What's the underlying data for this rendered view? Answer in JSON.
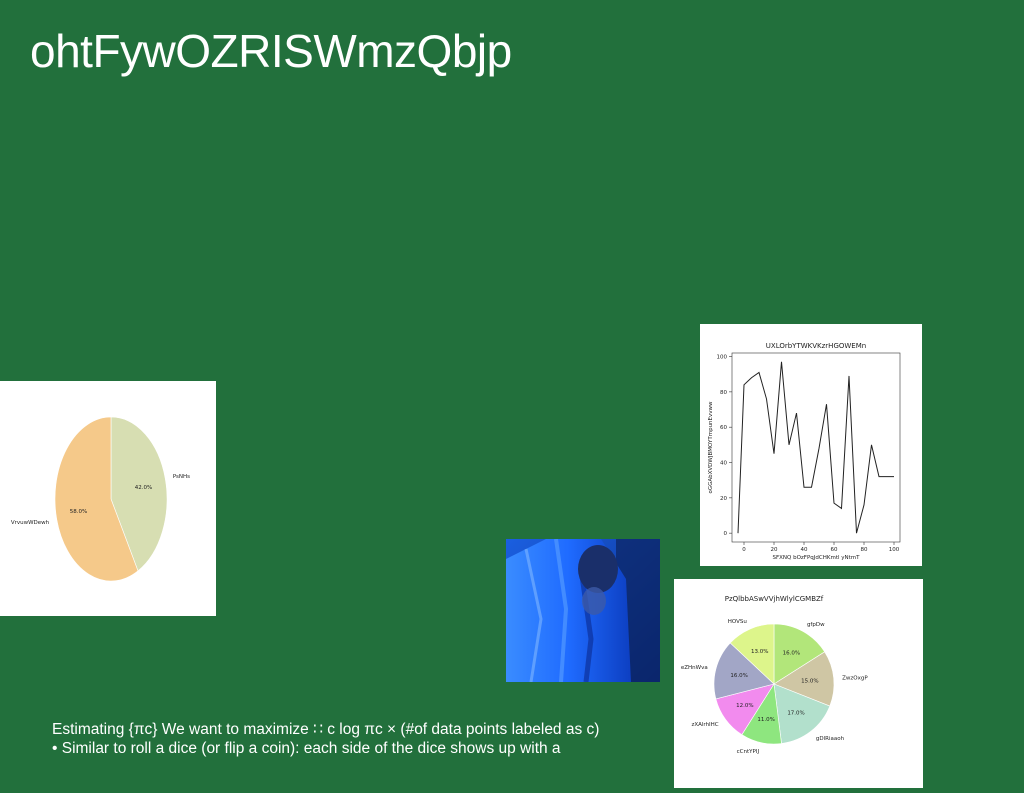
{
  "slide": {
    "title": "ohtFywOZRISWmzQbjp",
    "body_lines": [
      "Estimating {πc} We want to maximize ∷ c log πc × (#of data points labeled as c)",
      "• Similar to roll a dice (or flip a coin): each side of the dice shows up with a"
    ]
  },
  "chart_data": [
    {
      "type": "pie",
      "title": "",
      "labels": [
        "PsNHs",
        "VrvuwWDewh"
      ],
      "values": [
        42.0,
        58.0
      ],
      "colors": [
        "#d7deb2",
        "#f5c98a"
      ]
    },
    {
      "type": "line",
      "title": "UXLOrbYTWKVKzrHGOWEMn",
      "xlabel": "SFXNQ bOzFPqJdCHKmtl yNtmT",
      "ylabel": "oGGAbXVDWJBMOYTmpunEvvww",
      "xlim": [
        -8,
        104
      ],
      "ylim": [
        -5,
        102
      ],
      "xticks": [
        0,
        20,
        40,
        60,
        80,
        100
      ],
      "yticks": [
        0,
        20,
        40,
        60,
        80,
        100
      ],
      "x": [
        -4,
        0,
        5,
        10,
        15,
        20,
        25,
        30,
        35,
        40,
        45,
        50,
        55,
        60,
        65,
        70,
        75,
        80,
        85,
        90,
        95,
        100
      ],
      "y": [
        0,
        84,
        88,
        91,
        76,
        45,
        97,
        50,
        68,
        26,
        26,
        48,
        73,
        17,
        14,
        89,
        0,
        16,
        50,
        32,
        32,
        32
      ],
      "color": "#222222"
    },
    {
      "type": "pie",
      "title": "PzQlbbASwVVjhWlylCGMBZf",
      "labels": [
        "gfpDw",
        "ZwzOxgP",
        "gDlRiaaoh",
        "cCntYPIJ",
        "zXAlrhIHC",
        "eZHnWva",
        "HOVSu"
      ],
      "values": [
        16.0,
        15.0,
        17.0,
        11.0,
        12.0,
        16.0,
        13.0
      ],
      "colors": [
        "#b2e67a",
        "#cfc6a4",
        "#b2e0cc",
        "#8ee67f",
        "#f28bee",
        "#a2a6c6",
        "#ddf58b"
      ]
    }
  ],
  "photo": {
    "subject": "person-in-blue-garment"
  }
}
